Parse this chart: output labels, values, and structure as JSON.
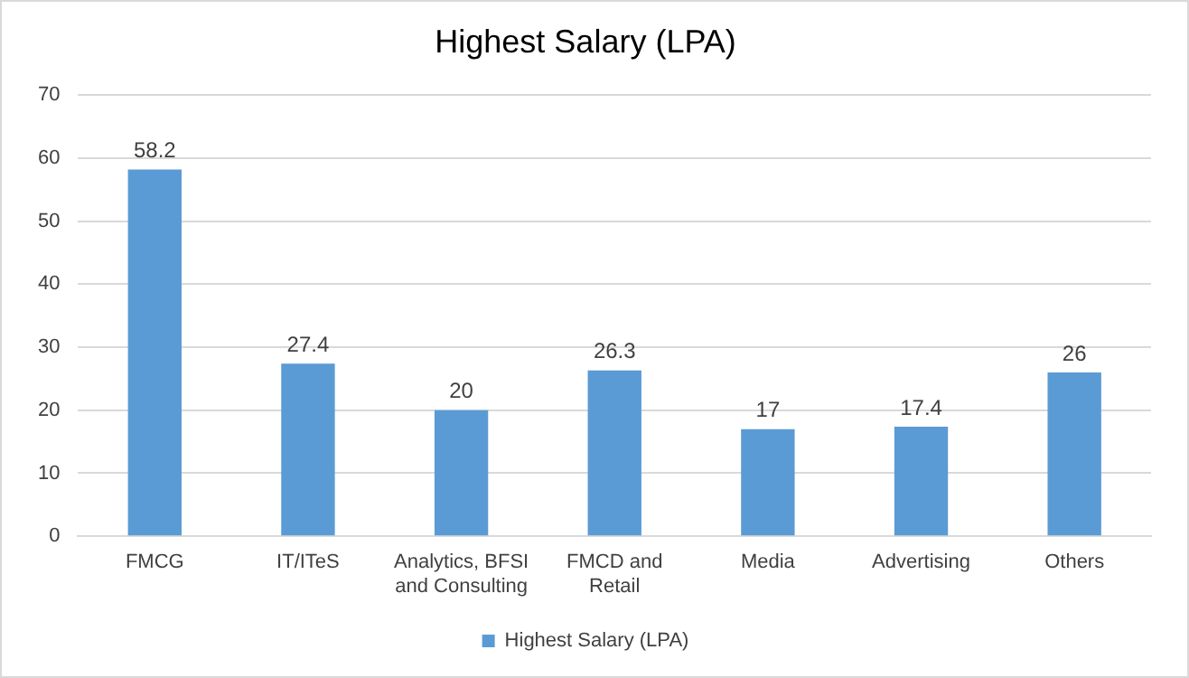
{
  "chart_data": {
    "type": "bar",
    "title": "Highest Salary (LPA)",
    "categories": [
      "FMCG",
      "IT/ITeS",
      "Analytics, BFSI and Consulting",
      "FMCD and Retail",
      "Media",
      "Advertising",
      "Others"
    ],
    "series": [
      {
        "name": "Highest Salary (LPA)",
        "color": "#5b9bd5",
        "values": [
          58.2,
          27.4,
          20,
          26.3,
          17,
          17.4,
          26
        ]
      }
    ],
    "ylim": [
      0,
      70
    ],
    "yticks": [
      0,
      10,
      20,
      30,
      40,
      50,
      60,
      70
    ],
    "grid": "y",
    "legend": "bottom",
    "data_labels": true
  }
}
